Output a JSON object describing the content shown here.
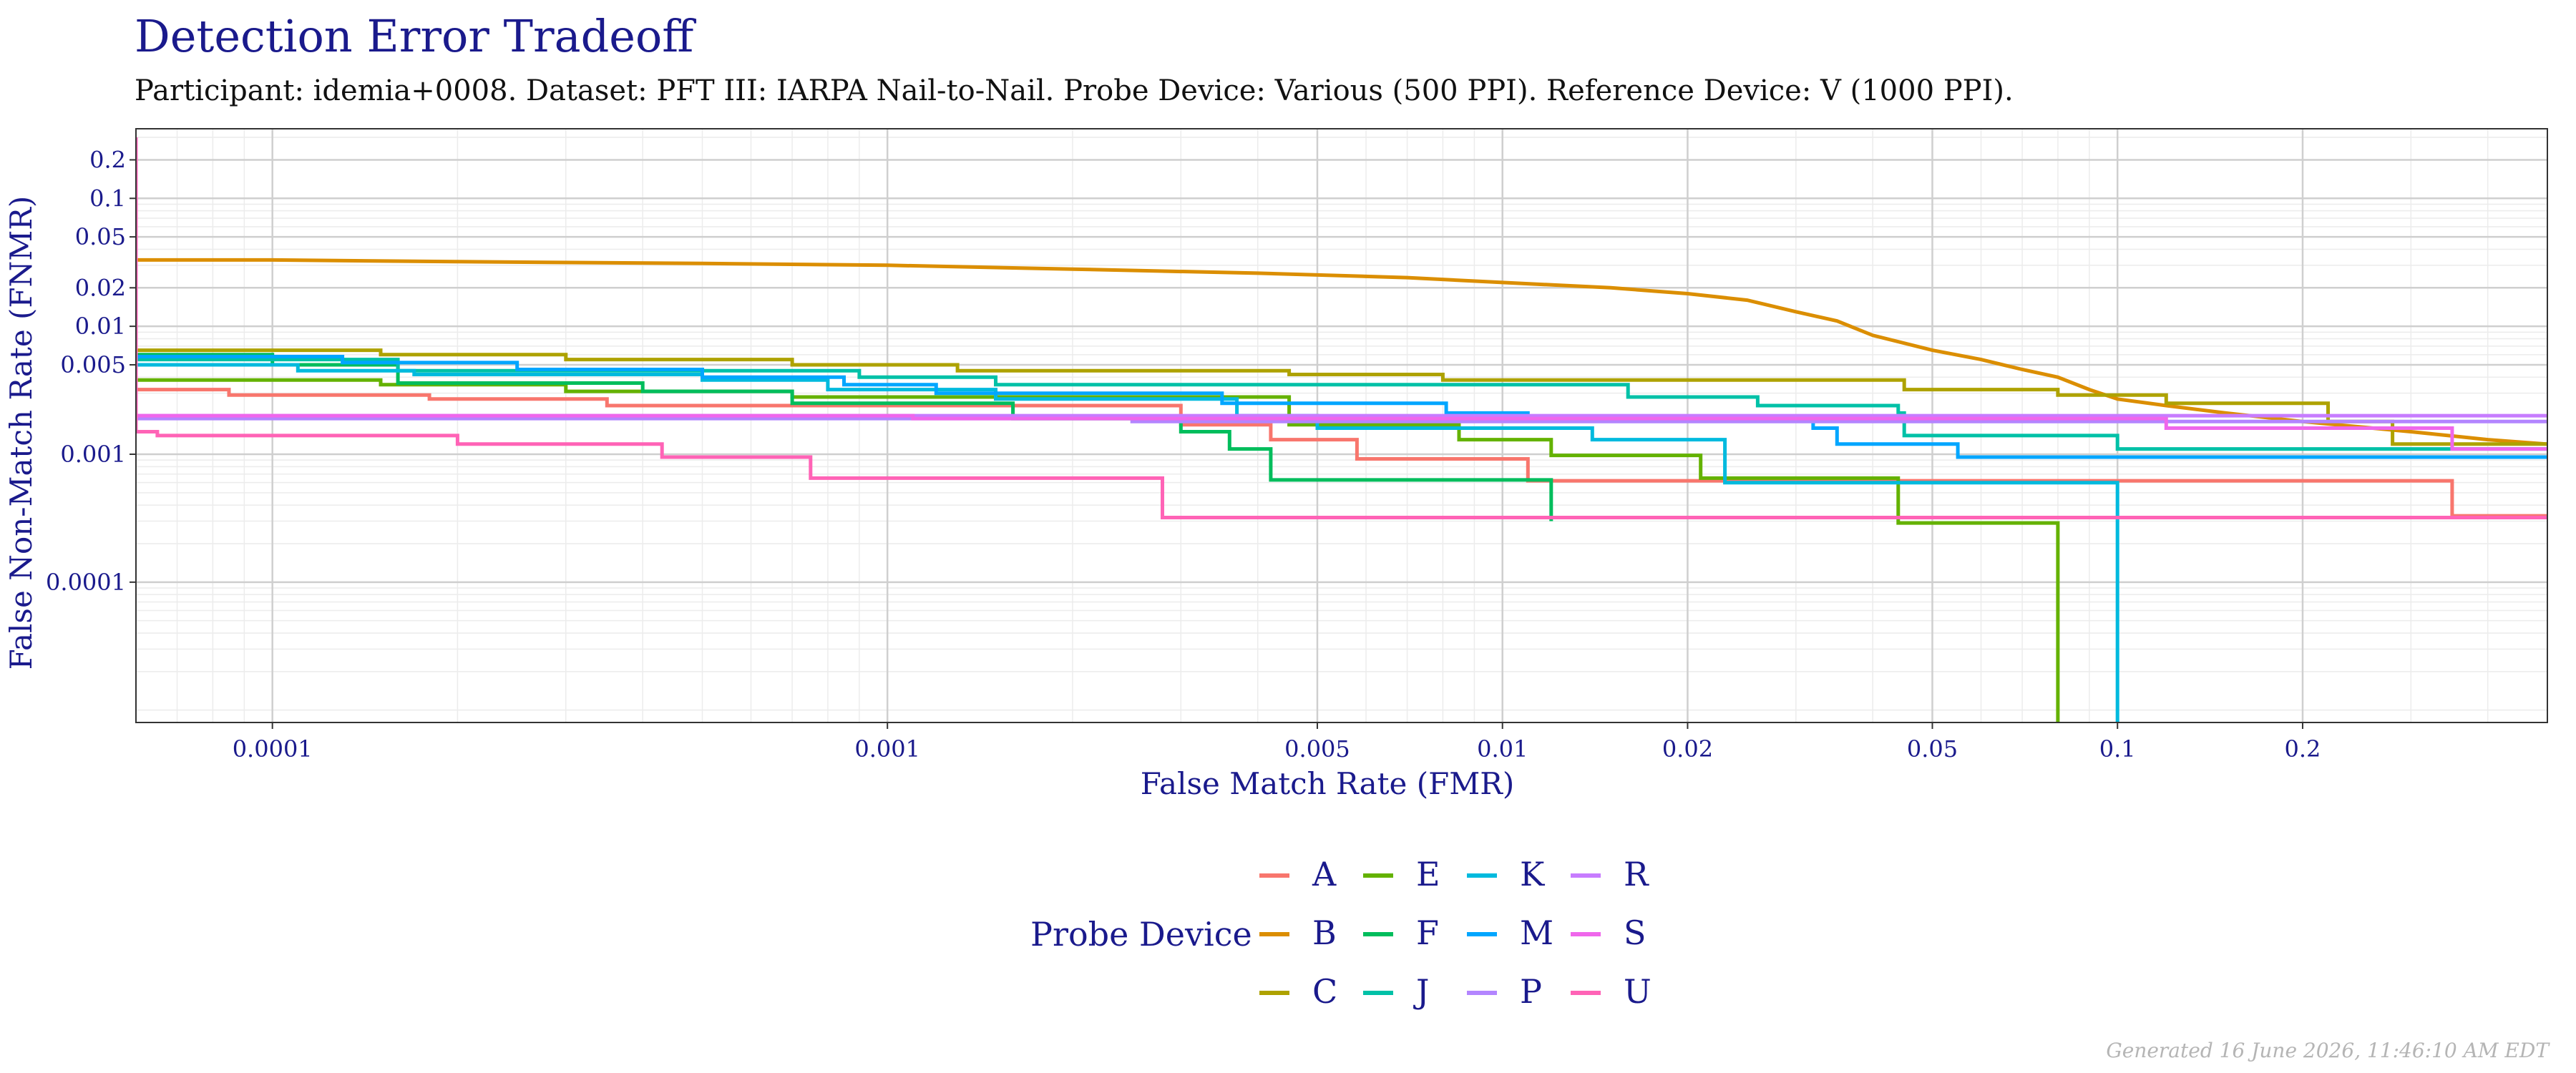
{
  "header": {
    "title": "Detection Error Tradeoff",
    "subtitle": "Participant: idemia+0008. Dataset: PFT III: IARPA Nail-to-Nail. Probe Device: Various (500 PPI). Reference Device: V (1000 PPI)."
  },
  "footer": {
    "generated": "Generated 16 June 2026, 11:46:10 AM EDT"
  },
  "chart_data": {
    "type": "line",
    "title": "Detection Error Tradeoff",
    "xlabel": "False Match Rate (FMR)",
    "ylabel": "False Non-Match Rate (FNMR)",
    "xscale": "log",
    "yscale": "log",
    "xlim": [
      6e-05,
      0.5
    ],
    "ylim": [
      8e-06,
      0.35
    ],
    "x_ticks": [
      {
        "value": 0.0001,
        "label": "0.0001"
      },
      {
        "value": 0.001,
        "label": "0.001"
      },
      {
        "value": 0.005,
        "label": "0.005"
      },
      {
        "value": 0.01,
        "label": "0.01"
      },
      {
        "value": 0.02,
        "label": "0.02"
      },
      {
        "value": 0.05,
        "label": "0.05"
      },
      {
        "value": 0.1,
        "label": "0.1"
      },
      {
        "value": 0.2,
        "label": "0.2"
      }
    ],
    "y_ticks": [
      {
        "value": 0.0001,
        "label": "0.0001"
      },
      {
        "value": 0.001,
        "label": "0.001"
      },
      {
        "value": 0.005,
        "label": "0.005"
      },
      {
        "value": 0.01,
        "label": "0.01"
      },
      {
        "value": 0.02,
        "label": "0.02"
      },
      {
        "value": 0.05,
        "label": "0.05"
      },
      {
        "value": 0.1,
        "label": "0.1"
      },
      {
        "value": 0.2,
        "label": "0.2"
      }
    ],
    "grid": true,
    "legend": {
      "title": "Probe Device",
      "position": "bottom"
    },
    "series": [
      {
        "name": "A",
        "color": "#F8766D",
        "points": [
          [
            6e-05,
            0.0032
          ],
          [
            8.5e-05,
            0.0032
          ],
          [
            8.5e-05,
            0.0029
          ],
          [
            0.00018,
            0.0029
          ],
          [
            0.00018,
            0.0027
          ],
          [
            0.00035,
            0.0027
          ],
          [
            0.00035,
            0.0024
          ],
          [
            0.003,
            0.0024
          ],
          [
            0.003,
            0.0017
          ],
          [
            0.0042,
            0.0017
          ],
          [
            0.0042,
            0.0013
          ],
          [
            0.0058,
            0.0013
          ],
          [
            0.0058,
            0.00092
          ],
          [
            0.011,
            0.00092
          ],
          [
            0.011,
            0.00062
          ],
          [
            0.35,
            0.00062
          ],
          [
            0.35,
            0.00033
          ],
          [
            0.5,
            0.00033
          ]
        ]
      },
      {
        "name": "B",
        "color": "#DB8E00",
        "points": [
          [
            6e-05,
            0.033
          ],
          [
            0.0001,
            0.033
          ],
          [
            0.0002,
            0.032
          ],
          [
            0.0005,
            0.031
          ],
          [
            0.001,
            0.03
          ],
          [
            0.002,
            0.028
          ],
          [
            0.004,
            0.026
          ],
          [
            0.007,
            0.024
          ],
          [
            0.01,
            0.022
          ],
          [
            0.015,
            0.02
          ],
          [
            0.02,
            0.018
          ],
          [
            0.025,
            0.016
          ],
          [
            0.03,
            0.013
          ],
          [
            0.035,
            0.011
          ],
          [
            0.04,
            0.0085
          ],
          [
            0.05,
            0.0065
          ],
          [
            0.06,
            0.0055
          ],
          [
            0.07,
            0.0046
          ],
          [
            0.08,
            0.004
          ],
          [
            0.09,
            0.0032
          ],
          [
            0.1,
            0.0027
          ],
          [
            0.12,
            0.0024
          ],
          [
            0.15,
            0.0021
          ],
          [
            0.2,
            0.0018
          ],
          [
            0.3,
            0.0015
          ],
          [
            0.4,
            0.0013
          ],
          [
            0.5,
            0.0012
          ]
        ]
      },
      {
        "name": "C",
        "color": "#AEA200",
        "points": [
          [
            6e-05,
            0.0065
          ],
          [
            0.00015,
            0.0065
          ],
          [
            0.00015,
            0.006
          ],
          [
            0.0003,
            0.006
          ],
          [
            0.0003,
            0.0055
          ],
          [
            0.0007,
            0.0055
          ],
          [
            0.0007,
            0.005
          ],
          [
            0.0013,
            0.005
          ],
          [
            0.0013,
            0.0045
          ],
          [
            0.0045,
            0.0045
          ],
          [
            0.0045,
            0.0042
          ],
          [
            0.008,
            0.0042
          ],
          [
            0.008,
            0.0038
          ],
          [
            0.045,
            0.0038
          ],
          [
            0.045,
            0.0032
          ],
          [
            0.08,
            0.0032
          ],
          [
            0.08,
            0.0029
          ],
          [
            0.12,
            0.0029
          ],
          [
            0.12,
            0.0025
          ],
          [
            0.22,
            0.0025
          ],
          [
            0.22,
            0.0018
          ],
          [
            0.28,
            0.0018
          ],
          [
            0.28,
            0.0012
          ],
          [
            0.5,
            0.0012
          ]
        ]
      },
      {
        "name": "E",
        "color": "#64B200",
        "points": [
          [
            6e-05,
            0.0038
          ],
          [
            0.00015,
            0.0038
          ],
          [
            0.00015,
            0.0035
          ],
          [
            0.0003,
            0.0035
          ],
          [
            0.0003,
            0.0031
          ],
          [
            0.0007,
            0.0031
          ],
          [
            0.0007,
            0.0028
          ],
          [
            0.0045,
            0.0028
          ],
          [
            0.0045,
            0.0017
          ],
          [
            0.0085,
            0.0017
          ],
          [
            0.0085,
            0.0013
          ],
          [
            0.012,
            0.0013
          ],
          [
            0.012,
            0.00098
          ],
          [
            0.021,
            0.00098
          ],
          [
            0.021,
            0.00065
          ],
          [
            0.044,
            0.00065
          ],
          [
            0.044,
            0.00029
          ],
          [
            0.08,
            0.00029
          ],
          [
            0.08,
            8e-06
          ]
        ]
      },
      {
        "name": "F",
        "color": "#00BD5C",
        "points": [
          [
            6e-05,
            0.006
          ],
          [
            0.0001,
            0.006
          ],
          [
            0.0001,
            0.005
          ],
          [
            0.00016,
            0.005
          ],
          [
            0.00016,
            0.0036
          ],
          [
            0.0004,
            0.0036
          ],
          [
            0.0004,
            0.0031
          ],
          [
            0.0007,
            0.0031
          ],
          [
            0.0007,
            0.0025
          ],
          [
            0.0016,
            0.0025
          ],
          [
            0.0016,
            0.0019
          ],
          [
            0.003,
            0.0019
          ],
          [
            0.003,
            0.0015
          ],
          [
            0.0036,
            0.0015
          ],
          [
            0.0036,
            0.0011
          ],
          [
            0.0042,
            0.0011
          ],
          [
            0.0042,
            0.00063
          ],
          [
            0.012,
            0.00063
          ],
          [
            0.012,
            0.0003
          ]
        ]
      },
      {
        "name": "J",
        "color": "#00C1A7",
        "points": [
          [
            6e-05,
            0.0055
          ],
          [
            0.00016,
            0.0055
          ],
          [
            0.00016,
            0.0045
          ],
          [
            0.0009,
            0.0045
          ],
          [
            0.0009,
            0.004
          ],
          [
            0.0015,
            0.004
          ],
          [
            0.0015,
            0.0035
          ],
          [
            0.016,
            0.0035
          ],
          [
            0.016,
            0.0028
          ],
          [
            0.026,
            0.0028
          ],
          [
            0.026,
            0.0024
          ],
          [
            0.044,
            0.0024
          ],
          [
            0.044,
            0.0021
          ],
          [
            0.045,
            0.0021
          ],
          [
            0.045,
            0.0014
          ],
          [
            0.1,
            0.0014
          ],
          [
            0.1,
            0.0011
          ],
          [
            0.5,
            0.0011
          ]
        ]
      },
      {
        "name": "K",
        "color": "#00BADE",
        "points": [
          [
            6e-05,
            0.005
          ],
          [
            0.00011,
            0.005
          ],
          [
            0.00011,
            0.0045
          ],
          [
            0.00017,
            0.0045
          ],
          [
            0.00017,
            0.0042
          ],
          [
            0.0005,
            0.0042
          ],
          [
            0.0005,
            0.0038
          ],
          [
            0.0008,
            0.0038
          ],
          [
            0.0008,
            0.0032
          ],
          [
            0.0015,
            0.0032
          ],
          [
            0.0015,
            0.0027
          ],
          [
            0.0037,
            0.0027
          ],
          [
            0.0037,
            0.002
          ],
          [
            0.005,
            0.002
          ],
          [
            0.005,
            0.0016
          ],
          [
            0.014,
            0.0016
          ],
          [
            0.014,
            0.0013
          ],
          [
            0.023,
            0.0013
          ],
          [
            0.023,
            0.0006
          ],
          [
            0.1,
            0.0006
          ],
          [
            0.1,
            8e-06
          ]
        ]
      },
      {
        "name": "M",
        "color": "#00A6FF",
        "points": [
          [
            6e-05,
            0.0058
          ],
          [
            0.00013,
            0.0058
          ],
          [
            0.00013,
            0.0052
          ],
          [
            0.00025,
            0.0052
          ],
          [
            0.00025,
            0.0046
          ],
          [
            0.0005,
            0.0046
          ],
          [
            0.0005,
            0.004
          ],
          [
            0.00085,
            0.004
          ],
          [
            0.00085,
            0.0035
          ],
          [
            0.0012,
            0.0035
          ],
          [
            0.0012,
            0.003
          ],
          [
            0.0035,
            0.003
          ],
          [
            0.0035,
            0.0025
          ],
          [
            0.0081,
            0.0025
          ],
          [
            0.0081,
            0.0021
          ],
          [
            0.011,
            0.0021
          ],
          [
            0.011,
            0.0019
          ],
          [
            0.032,
            0.0019
          ],
          [
            0.032,
            0.0016
          ],
          [
            0.035,
            0.0016
          ],
          [
            0.035,
            0.0012
          ],
          [
            0.055,
            0.0012
          ],
          [
            0.055,
            0.00095
          ],
          [
            0.5,
            0.00095
          ]
        ]
      },
      {
        "name": "P",
        "color": "#B385FF",
        "points": [
          [
            6e-05,
            0.0019
          ],
          [
            0.0025,
            0.0019
          ],
          [
            0.0025,
            0.0018
          ],
          [
            0.5,
            0.0018
          ]
        ]
      },
      {
        "name": "R",
        "color": "#C77CFF",
        "points": [
          [
            6e-05,
            0.002
          ],
          [
            0.5,
            0.002
          ]
        ]
      },
      {
        "name": "S",
        "color": "#EF67EB",
        "points": [
          [
            6e-05,
            0.002
          ],
          [
            0.0011,
            0.002
          ],
          [
            0.0011,
            0.0019
          ],
          [
            0.12,
            0.0019
          ],
          [
            0.12,
            0.0016
          ],
          [
            0.35,
            0.0016
          ],
          [
            0.35,
            0.0011
          ],
          [
            0.5,
            0.0011
          ]
        ]
      },
      {
        "name": "U",
        "color": "#FF63B6",
        "points": [
          [
            6e-05,
            0.3
          ],
          [
            6e-05,
            0.0015
          ],
          [
            6.5e-05,
            0.0015
          ],
          [
            6.5e-05,
            0.0014
          ],
          [
            0.0002,
            0.0014
          ],
          [
            0.0002,
            0.0012
          ],
          [
            0.00043,
            0.0012
          ],
          [
            0.00043,
            0.00095
          ],
          [
            0.00075,
            0.00095
          ],
          [
            0.00075,
            0.00065
          ],
          [
            0.0028,
            0.00065
          ],
          [
            0.0028,
            0.00032
          ],
          [
            0.5,
            0.00032
          ]
        ]
      }
    ]
  }
}
